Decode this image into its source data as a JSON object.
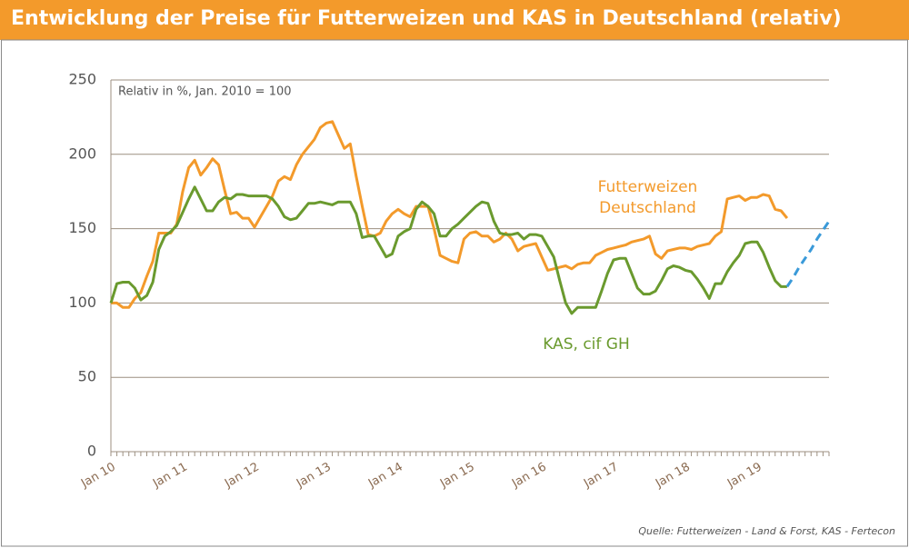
{
  "chart_data": {
    "type": "line",
    "title": "Entwicklung der Preise für Futterweizen und KAS in Deutschland (relativ)",
    "note": "Relativ in %, Jan. 2010 = 100",
    "source": "Quelle: Futterweizen - Land & Forst, KAS - Fertecon",
    "categories": [
      "Jan 10",
      null,
      null,
      null,
      null,
      null,
      null,
      null,
      null,
      null,
      null,
      null,
      "Jan 11",
      null,
      null,
      null,
      null,
      null,
      null,
      null,
      null,
      null,
      null,
      null,
      "Jan 12",
      null,
      null,
      null,
      null,
      null,
      null,
      null,
      null,
      null,
      null,
      null,
      "Jan 13",
      null,
      null,
      null,
      null,
      null,
      null,
      null,
      null,
      null,
      null,
      null,
      "Jan 14",
      null,
      null,
      null,
      null,
      null,
      null,
      null,
      null,
      null,
      null,
      null,
      "Jan 15",
      null,
      null,
      null,
      null,
      null,
      null,
      null,
      null,
      null,
      null,
      null,
      "Jan 16",
      null,
      null,
      null,
      null,
      null,
      null,
      null,
      null,
      null,
      null,
      null,
      "Jan 17",
      null,
      null,
      null,
      null,
      null,
      null,
      null,
      null,
      null,
      null,
      null,
      "Jan 18",
      null,
      null,
      null,
      null,
      null,
      null,
      null,
      null,
      null,
      null,
      null,
      "Jan 19",
      null,
      null,
      null,
      null,
      null,
      null,
      null,
      null,
      null,
      null,
      null,
      null
    ],
    "series": [
      {
        "name": "Futterweizen Deutschland",
        "color": "#f39a2b",
        "values": [
          100,
          100,
          97,
          97,
          103,
          107,
          118,
          128,
          147,
          147,
          147,
          153,
          175,
          191,
          196,
          186,
          191,
          197,
          193,
          176,
          160,
          161,
          157,
          157,
          151,
          158,
          165,
          172,
          182,
          185,
          183,
          193,
          200,
          205,
          210,
          218,
          221,
          222,
          213,
          204,
          207,
          185,
          165,
          146,
          145,
          147,
          155,
          160,
          163,
          160,
          158,
          165,
          165,
          165,
          150,
          132,
          130,
          128,
          127,
          143,
          147,
          148,
          145,
          145,
          141,
          143,
          147,
          143,
          135,
          138,
          139,
          140,
          131,
          122,
          123,
          124,
          125,
          123,
          126,
          127,
          127,
          132,
          134,
          136,
          137,
          138,
          139,
          141,
          142,
          143,
          145,
          133,
          130,
          135,
          136,
          137,
          137,
          136,
          138,
          139,
          140,
          145,
          148,
          170,
          171,
          172,
          169,
          171,
          171,
          173,
          172,
          163,
          162,
          157,
          null,
          null,
          null,
          null,
          null,
          null,
          null
        ]
      },
      {
        "name": "KAS, cif GH",
        "color": "#6a9a2e",
        "values": [
          100,
          113,
          114,
          114,
          110,
          102,
          105,
          114,
          136,
          145,
          148,
          152,
          161,
          170,
          178,
          170,
          162,
          162,
          168,
          171,
          170,
          173,
          173,
          172,
          172,
          172,
          172,
          170,
          165,
          158,
          156,
          157,
          162,
          167,
          167,
          168,
          167,
          166,
          168,
          168,
          168,
          160,
          144,
          145,
          145,
          138,
          131,
          133,
          145,
          148,
          150,
          163,
          168,
          165,
          160,
          145,
          145,
          150,
          153,
          157,
          161,
          165,
          168,
          167,
          155,
          147,
          146,
          146,
          147,
          143,
          146,
          146,
          145,
          138,
          131,
          115,
          100,
          93,
          97,
          97,
          97,
          97,
          108,
          120,
          129,
          130,
          130,
          120,
          110,
          106,
          106,
          108,
          115,
          123,
          125,
          124,
          122,
          121,
          116,
          110,
          103,
          113,
          113,
          121,
          127,
          132,
          140,
          141,
          141,
          134,
          124,
          115,
          111,
          111,
          null,
          null,
          null,
          null,
          null,
          null,
          null
        ]
      },
      {
        "color": "#3a9ad9",
        "dashed": true,
        "values": [
          null,
          null,
          null,
          null,
          null,
          null,
          null,
          null,
          null,
          null,
          null,
          null,
          null,
          null,
          null,
          null,
          null,
          null,
          null,
          null,
          null,
          null,
          null,
          null,
          null,
          null,
          null,
          null,
          null,
          null,
          null,
          null,
          null,
          null,
          null,
          null,
          null,
          null,
          null,
          null,
          null,
          null,
          null,
          null,
          null,
          null,
          null,
          null,
          null,
          null,
          null,
          null,
          null,
          null,
          null,
          null,
          null,
          null,
          null,
          null,
          null,
          null,
          null,
          null,
          null,
          null,
          null,
          null,
          null,
          null,
          null,
          null,
          null,
          null,
          null,
          null,
          null,
          null,
          null,
          null,
          null,
          null,
          null,
          null,
          null,
          null,
          null,
          null,
          null,
          null,
          null,
          null,
          null,
          null,
          null,
          null,
          null,
          null,
          null,
          null,
          null,
          null,
          null,
          null,
          null,
          null,
          null,
          null,
          null,
          null,
          null,
          null,
          null,
          111,
          117,
          124,
          130,
          136,
          143,
          149,
          155
        ]
      }
    ],
    "ylim": [
      0,
      250
    ],
    "yticks": [
      0,
      50,
      100,
      150,
      200,
      250
    ],
    "grid": true
  }
}
